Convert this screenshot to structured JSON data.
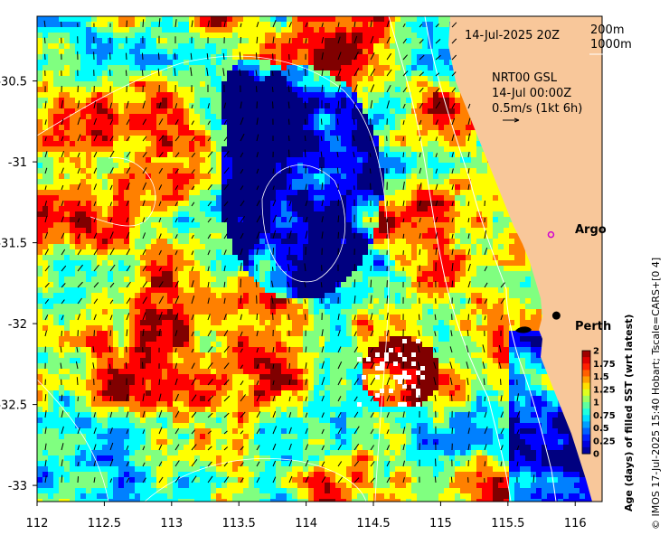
{
  "map": {
    "timestamp": "14-Jul-2025 20Z",
    "contour_legend": [
      "200m",
      "1000m"
    ],
    "current_info": {
      "model": "NRT00 GSL",
      "time": "14-Jul 00:00Z",
      "scale": "0.5m/s (1kt 6h)"
    },
    "places": [
      {
        "name": "Argo",
        "lon": 115.82,
        "lat": -31.45,
        "marker": "argo-float",
        "color": "#d000d0"
      },
      {
        "name": "Perth",
        "lon": 115.86,
        "lat": -31.95,
        "marker": "city",
        "color": "#000000"
      }
    ],
    "extent": {
      "lon": [
        112.0,
        116.2
      ],
      "lat": [
        -33.1,
        -30.1
      ]
    },
    "lon_ticks": [
      "112",
      "112.5",
      "113",
      "113.5",
      "114",
      "114.5",
      "115",
      "115.5",
      "116"
    ],
    "lat_ticks": [
      "-30.5",
      "-31",
      "-31.5",
      "-32",
      "-32.5",
      "-33"
    ],
    "colorbar": {
      "title": "Age (days) of filled SST (wrt latest)",
      "ticks": [
        "2",
        "1.75",
        "1.5",
        "1.25",
        "1",
        "0.75",
        "0.5",
        "0.25",
        "0"
      ],
      "range": [
        0,
        2
      ]
    },
    "credit": "© IMOS 17-Jul-2025 15:40 Hobart; Tscale=CARS+[0 4]",
    "colors": {
      "land": "#f8c79a",
      "argo": "#d000d0"
    }
  }
}
